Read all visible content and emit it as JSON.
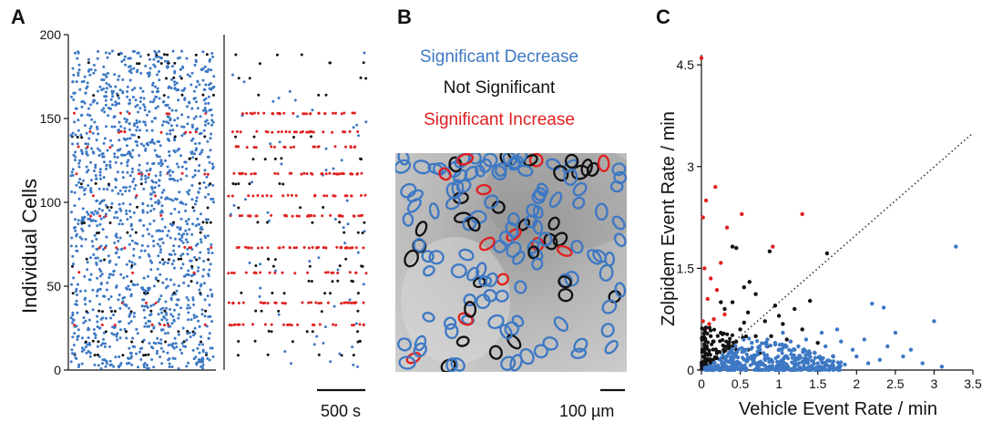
{
  "colors": {
    "decrease": "#3d78c4",
    "not_significant": "#111111",
    "increase": "#e02020",
    "axis": "#111111",
    "micrograph_light": "#c6c6c6",
    "micrograph_dark": "#7a7a7a"
  },
  "panels": {
    "a": {
      "label": "A",
      "scale_bar": "500 s"
    },
    "b": {
      "label": "B",
      "scale_bar": "100 µm"
    },
    "c": {
      "label": "C"
    }
  },
  "legend": {
    "decrease": "Significant Decrease",
    "not_significant": "Not Significant",
    "increase": "Significant Increase"
  },
  "chart_data": [
    {
      "type": "scatter",
      "panel": "A",
      "ylabel": "Individual Cells",
      "ylim": [
        0,
        200
      ],
      "yticks": [
        "0",
        "50",
        "100",
        "150",
        "200"
      ],
      "increase_cells": [
        27,
        40,
        58,
        73,
        92,
        104,
        117,
        133,
        142,
        153
      ],
      "not_significant_cells": [
        9,
        17,
        23,
        35,
        46,
        53,
        62,
        66,
        82,
        88,
        97,
        111,
        126,
        139,
        164,
        174,
        183,
        188
      ]
    },
    {
      "type": "scatter",
      "panel": "C",
      "xlabel": "Vehicle Event Rate / min",
      "ylabel": "Zolpidem Event Rate / min",
      "xlim": [
        0,
        3.5
      ],
      "ylim": [
        0,
        4.65
      ],
      "xticks": [
        "0",
        "0.5",
        "1",
        "1.5",
        "2",
        "2.5",
        "3",
        "3.5"
      ],
      "yticks": [
        "0",
        "1.5",
        "3",
        "4.5"
      ],
      "xtick_values": [
        0,
        0.5,
        1,
        1.5,
        2,
        2.5,
        3,
        3.5
      ],
      "ytick_values": [
        0,
        1.5,
        3,
        4.5
      ],
      "identity_line": true,
      "series": [
        {
          "category": "increase",
          "points": [
            [
              0,
              4.6
            ],
            [
              0.18,
              2.7
            ],
            [
              0.06,
              2.5
            ],
            [
              0.02,
              2.25
            ],
            [
              0.33,
              2.1
            ],
            [
              0.52,
              2.3
            ],
            [
              1.3,
              2.3
            ],
            [
              0.92,
              1.82
            ],
            [
              0.25,
              1.58
            ],
            [
              0.04,
              1.5
            ],
            [
              0.12,
              1.35
            ],
            [
              0.2,
              1.18
            ],
            [
              0.08,
              1.05
            ],
            [
              0.02,
              0.72
            ],
            [
              0.1,
              0.68
            ],
            [
              0.16,
              0.75
            ],
            [
              0.06,
              0.62
            ],
            [
              0.3,
              0.82
            ]
          ]
        },
        {
          "category": "not_significant",
          "points": [
            [
              0.4,
              1.82
            ],
            [
              0.45,
              1.8
            ],
            [
              0.88,
              1.75
            ],
            [
              1.62,
              1.72
            ],
            [
              0.55,
              1.22
            ],
            [
              0.7,
              1.12
            ],
            [
              0.95,
              0.95
            ],
            [
              1.2,
              0.9
            ],
            [
              1.4,
              1.02
            ],
            [
              0.3,
              0.9
            ],
            [
              0.6,
              0.85
            ],
            [
              0.82,
              0.72
            ],
            [
              1.05,
              0.68
            ],
            [
              0.25,
              0.55
            ],
            [
              0.5,
              0.6
            ],
            [
              0.7,
              0.5
            ],
            [
              0.15,
              0.42
            ],
            [
              0.35,
              0.38
            ],
            [
              0.9,
              0.5
            ],
            [
              1.1,
              0.45
            ],
            [
              0.2,
              0.25
            ],
            [
              0.45,
              0.3
            ],
            [
              0.1,
              0.15
            ],
            [
              0.3,
              0.18
            ],
            [
              0.05,
              0.08
            ],
            [
              0.6,
              0.3
            ],
            [
              0.75,
              0.25
            ],
            [
              1.3,
              0.6
            ],
            [
              1.5,
              0.4
            ],
            [
              0.4,
              1.0
            ],
            [
              0.62,
              1.3
            ],
            [
              0.25,
              1.0
            ],
            [
              0.12,
              0.5
            ],
            [
              0.85,
              0.35
            ],
            [
              1.0,
              0.8
            ],
            [
              0.55,
              0.7
            ]
          ]
        },
        {
          "category": "decrease",
          "points": [
            [
              3.28,
              1.82
            ],
            [
              2.2,
              0.98
            ],
            [
              2.35,
              0.92
            ],
            [
              3.0,
              0.72
            ],
            [
              2.5,
              0.55
            ],
            [
              2.1,
              0.45
            ],
            [
              1.8,
              0.42
            ],
            [
              1.95,
              0.3
            ],
            [
              2.6,
              0.2
            ],
            [
              2.85,
              0.1
            ],
            [
              3.1,
              0.05
            ],
            [
              2.3,
              0.15
            ],
            [
              1.6,
              0.35
            ],
            [
              1.7,
              0.2
            ],
            [
              1.4,
              0.25
            ],
            [
              1.5,
              0.1
            ],
            [
              1.2,
              0.3
            ],
            [
              1.3,
              0.12
            ],
            [
              1.1,
              0.2
            ],
            [
              1.0,
              0.3
            ],
            [
              0.9,
              0.15
            ],
            [
              0.8,
              0.25
            ],
            [
              0.7,
              0.1
            ],
            [
              0.6,
              0.18
            ],
            [
              0.5,
              0.08
            ],
            [
              0.4,
              0.05
            ],
            [
              1.0,
              0.05
            ],
            [
              1.2,
              0.08
            ],
            [
              1.05,
              0.55
            ],
            [
              1.35,
              0.45
            ],
            [
              0.95,
              0.4
            ],
            [
              1.55,
              0.55
            ],
            [
              1.75,
              0.6
            ],
            [
              2.0,
              0.2
            ],
            [
              2.15,
              0.1
            ],
            [
              1.85,
              0.08
            ],
            [
              1.65,
              0.05
            ],
            [
              1.45,
              0.02
            ],
            [
              0.75,
              0.35
            ],
            [
              0.55,
              0.3
            ],
            [
              0.65,
              0.4
            ],
            [
              0.85,
              0.45
            ],
            [
              0.45,
              0.2
            ],
            [
              0.35,
              0.12
            ],
            [
              1.15,
              0.42
            ],
            [
              1.25,
              0.35
            ],
            [
              2.4,
              0.35
            ],
            [
              2.7,
              0.3
            ]
          ]
        }
      ]
    }
  ]
}
